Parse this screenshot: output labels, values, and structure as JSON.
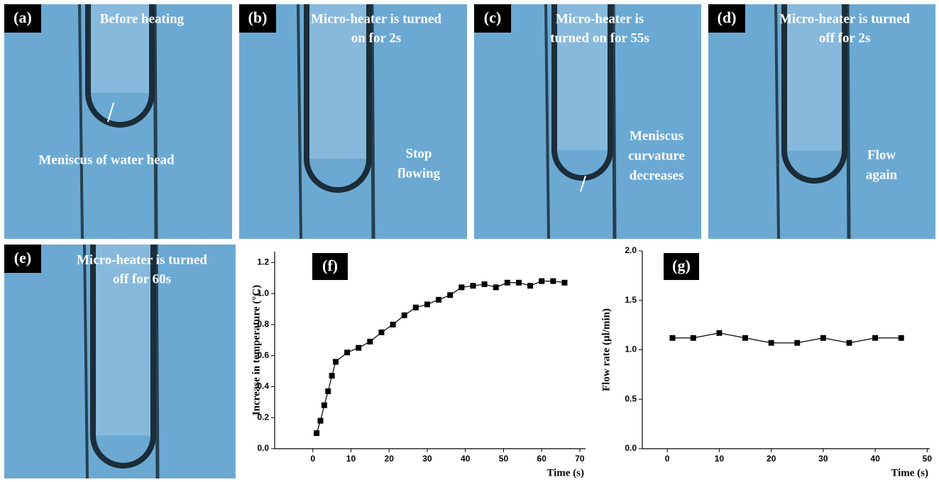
{
  "panels": [
    {
      "label": "(a)",
      "caption": [
        "Before heating"
      ],
      "note": [
        "Meniscus of water head"
      ]
    },
    {
      "label": "(b)",
      "caption": [
        "Micro-heater is turned",
        "on for 2s"
      ],
      "note": [
        "Stop",
        "flowing"
      ]
    },
    {
      "label": "(c)",
      "caption": [
        "Micro-heater is",
        "turned on for 55s"
      ],
      "note": [
        "Meniscus",
        "curvature",
        "decreases"
      ]
    },
    {
      "label": "(d)",
      "caption": [
        "Micro-heater is turned",
        "off for 2s"
      ],
      "note": [
        "Flow",
        "again"
      ]
    },
    {
      "label": "(e)",
      "caption": [
        "Micro-heater is turned",
        "off for 60s"
      ],
      "note": []
    }
  ],
  "chart_data": [
    {
      "type": "line",
      "label": "(f)",
      "x_label": "Time (s)",
      "y_label": "Increase in temperature (°C)",
      "color": "#000000",
      "marker": "square",
      "x": [
        1,
        2,
        3,
        4,
        5,
        6,
        9,
        12,
        15,
        18,
        21,
        24,
        27,
        30,
        33,
        36,
        39,
        42,
        45,
        48,
        51,
        54,
        57,
        60,
        63,
        66
      ],
      "values": [
        0.1,
        0.18,
        0.28,
        0.37,
        0.47,
        0.56,
        0.62,
        0.65,
        0.69,
        0.75,
        0.8,
        0.86,
        0.91,
        0.93,
        0.96,
        0.99,
        1.04,
        1.05,
        1.06,
        1.04,
        1.07,
        1.07,
        1.05,
        1.08,
        1.08,
        1.07
      ],
      "xlim": [
        -10,
        71.5
      ],
      "xticks": [
        0,
        10,
        20,
        30,
        40,
        50,
        60,
        70
      ],
      "ylim": [
        0,
        1.27
      ],
      "yticks": [
        {
          "value": 0,
          "label": "0.0"
        },
        0.2,
        0.4,
        0.6,
        0.8,
        {
          "value": 1,
          "label": "1.0"
        },
        1.2
      ]
    },
    {
      "type": "line",
      "label": "(g)",
      "x_label": "Time (s)",
      "y_label": "Flow rate (µl/min)",
      "color": "#000000",
      "marker": "square",
      "x": [
        1,
        5,
        10,
        15,
        20,
        25,
        30,
        35,
        40,
        45
      ],
      "values": [
        1.12,
        1.12,
        1.17,
        1.12,
        1.07,
        1.07,
        1.12,
        1.07,
        1.12,
        1.12
      ],
      "xlim": [
        -4.8,
        50.5
      ],
      "xticks": [
        0,
        10,
        20,
        30,
        40,
        50
      ],
      "ylim": [
        0,
        2
      ],
      "yticks": [
        {
          "value": 0,
          "label": "0.0"
        },
        0.5,
        {
          "value": 1,
          "label": "1.0"
        },
        1.5,
        {
          "value": 2,
          "label": "2.0"
        }
      ]
    }
  ]
}
